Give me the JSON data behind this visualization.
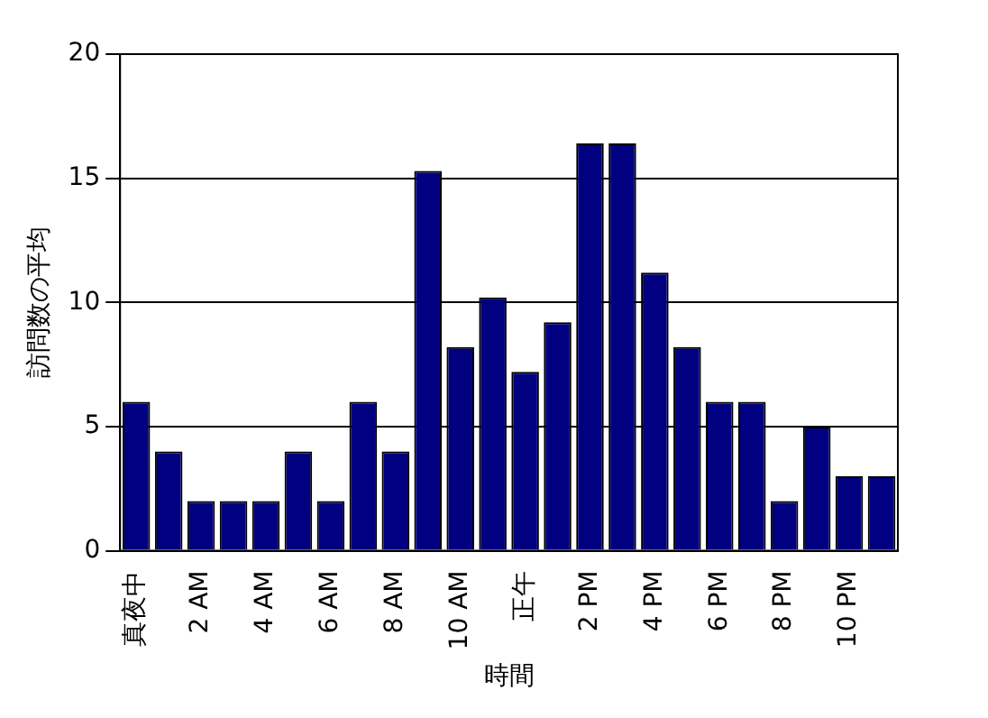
{
  "chart_data": {
    "type": "bar",
    "xlabel": "時間",
    "ylabel": "訪問数の平均",
    "categories": [
      "真夜中",
      null,
      "2 AM",
      null,
      "4 AM",
      null,
      "6 AM",
      null,
      "8 AM",
      null,
      "10 AM",
      null,
      "正午",
      null,
      "2 PM",
      null,
      "4 PM",
      null,
      "6 PM",
      null,
      "8 PM",
      null,
      "10 PM",
      null
    ],
    "values": [
      6,
      4,
      2,
      2,
      2,
      4,
      2,
      6,
      4,
      15.3,
      8.2,
      10.2,
      7.2,
      9.2,
      16.4,
      16.4,
      11.2,
      8.2,
      6,
      6,
      2,
      5,
      3,
      3
    ],
    "color": "#000080",
    "ylim": [
      0,
      20
    ],
    "yticks": [
      0,
      5,
      10,
      15,
      20
    ],
    "grid": "y",
    "legend": false
  }
}
